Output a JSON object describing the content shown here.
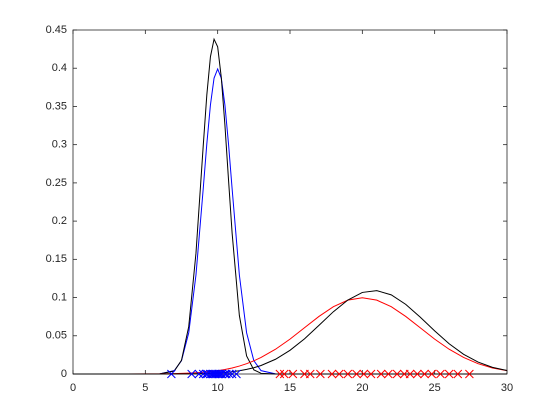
{
  "chart_data": {
    "type": "line",
    "xlim": [
      0,
      30
    ],
    "xticks": [
      0,
      5,
      10,
      15,
      20,
      25,
      30
    ],
    "ylim": [
      0,
      0.45
    ],
    "yticks": [
      0,
      0.05,
      0.1,
      0.15,
      0.2,
      0.25,
      0.3,
      0.35,
      0.4,
      0.45
    ],
    "series": [
      {
        "type": "line",
        "color": "#0000ff",
        "x": [
          0,
          5,
          6,
          7,
          7.5,
          8,
          8.5,
          9,
          9.25,
          9.5,
          9.75,
          10,
          10.25,
          10.5,
          10.75,
          11,
          11.5,
          12,
          12.5,
          13,
          14,
          15,
          16,
          17,
          18,
          19,
          20,
          21,
          22,
          23,
          24,
          25,
          26,
          27,
          28,
          29,
          30
        ],
        "values": [
          0,
          0,
          0.0001,
          0.0044,
          0.0175,
          0.054,
          0.1295,
          0.242,
          0.301,
          0.352,
          0.387,
          0.399,
          0.387,
          0.352,
          0.301,
          0.242,
          0.1295,
          0.054,
          0.0175,
          0.0044,
          0.0001,
          0,
          0,
          0,
          0,
          0,
          0,
          0,
          0,
          0,
          0,
          0,
          0,
          0,
          0,
          0,
          0
        ]
      },
      {
        "type": "line",
        "color": "#000000",
        "x": [
          0,
          5,
          6,
          7,
          7.5,
          8,
          8.5,
          9,
          9.25,
          9.5,
          9.75,
          10,
          10.25,
          10.5,
          10.75,
          11,
          11.5,
          12,
          12.5,
          13,
          14,
          15,
          16,
          17,
          18,
          19,
          20,
          21,
          22,
          23,
          24,
          25,
          26,
          27,
          28,
          29,
          30
        ],
        "values": [
          0,
          0,
          0.0001,
          0.0039,
          0.018,
          0.062,
          0.158,
          0.298,
          0.365,
          0.415,
          0.438,
          0.428,
          0.388,
          0.326,
          0.254,
          0.184,
          0.0765,
          0.0236,
          0.0054,
          0.0009,
          0,
          0,
          0,
          0,
          0,
          0,
          0,
          0,
          0,
          0,
          0,
          0,
          0,
          0,
          0,
          0,
          0
        ]
      },
      {
        "type": "line",
        "color": "#ff0000",
        "x": [
          0,
          5,
          6,
          7,
          7.5,
          8,
          8.5,
          9,
          9.25,
          9.5,
          9.75,
          10,
          10.25,
          10.5,
          10.75,
          11,
          11.5,
          12,
          12.5,
          13,
          14,
          15,
          16,
          17,
          18,
          19,
          20,
          21,
          22,
          23,
          24,
          25,
          26,
          27,
          28,
          29,
          30
        ],
        "values": [
          0,
          0.0001,
          0.0002,
          0.0005,
          0.0008,
          0.0011,
          0.0016,
          0.0023,
          0.0027,
          0.0032,
          0.0037,
          0.0044,
          0.0051,
          0.0059,
          0.0069,
          0.0079,
          0.0104,
          0.0135,
          0.0172,
          0.0216,
          0.0324,
          0.0456,
          0.0605,
          0.0753,
          0.088,
          0.0966,
          0.0997,
          0.0966,
          0.088,
          0.0753,
          0.0605,
          0.0456,
          0.0324,
          0.0216,
          0.0135,
          0.0079,
          0.0044
        ]
      },
      {
        "type": "line",
        "color": "#000000",
        "x": [
          0,
          5,
          6,
          7,
          7.5,
          8,
          8.5,
          9,
          9.25,
          9.5,
          9.75,
          10,
          10.25,
          10.5,
          10.75,
          11,
          11.5,
          12,
          12.5,
          13,
          14,
          15,
          16,
          17,
          18,
          19,
          20,
          21,
          22,
          23,
          24,
          25,
          26,
          27,
          28,
          29,
          30
        ],
        "values": [
          0,
          0,
          0,
          0.0001,
          0.0001,
          0.0002,
          0.0004,
          0.0006,
          0.0007,
          0.0009,
          0.0011,
          0.0014,
          0.0017,
          0.002,
          0.0025,
          0.003,
          0.0043,
          0.006,
          0.0082,
          0.0111,
          0.0193,
          0.031,
          0.046,
          0.0636,
          0.0815,
          0.0968,
          0.1067,
          0.1091,
          0.1035,
          0.0911,
          0.0744,
          0.0564,
          0.0396,
          0.0258,
          0.0156,
          0.0087,
          0.0046
        ]
      },
      {
        "type": "scatter",
        "color": "#0000ff",
        "x": [
          6.8,
          8.2,
          8.7,
          9.0,
          9.2,
          9.3,
          9.5,
          9.6,
          9.7,
          9.8,
          9.9,
          10.0,
          10.1,
          10.2,
          10.3,
          10.5,
          10.6,
          10.8,
          11.0,
          11.3
        ],
        "values": [
          0,
          0,
          0,
          0,
          0,
          0,
          0,
          0,
          0,
          0,
          0,
          0,
          0,
          0,
          0,
          0,
          0,
          0,
          0,
          0
        ]
      },
      {
        "type": "scatter",
        "color": "#ff0000",
        "x": [
          14.3,
          14.6,
          15.2,
          16.0,
          16.4,
          17.1,
          17.9,
          18.4,
          19.0,
          19.6,
          20.1,
          20.6,
          21.3,
          21.8,
          22.4,
          22.9,
          23.3,
          23.8,
          24.3,
          24.8,
          25.4,
          26.0,
          26.6,
          27.4
        ],
        "values": [
          0,
          0,
          0,
          0,
          0,
          0,
          0,
          0,
          0,
          0,
          0,
          0,
          0,
          0,
          0,
          0,
          0,
          0,
          0,
          0,
          0,
          0,
          0,
          0
        ]
      }
    ]
  }
}
